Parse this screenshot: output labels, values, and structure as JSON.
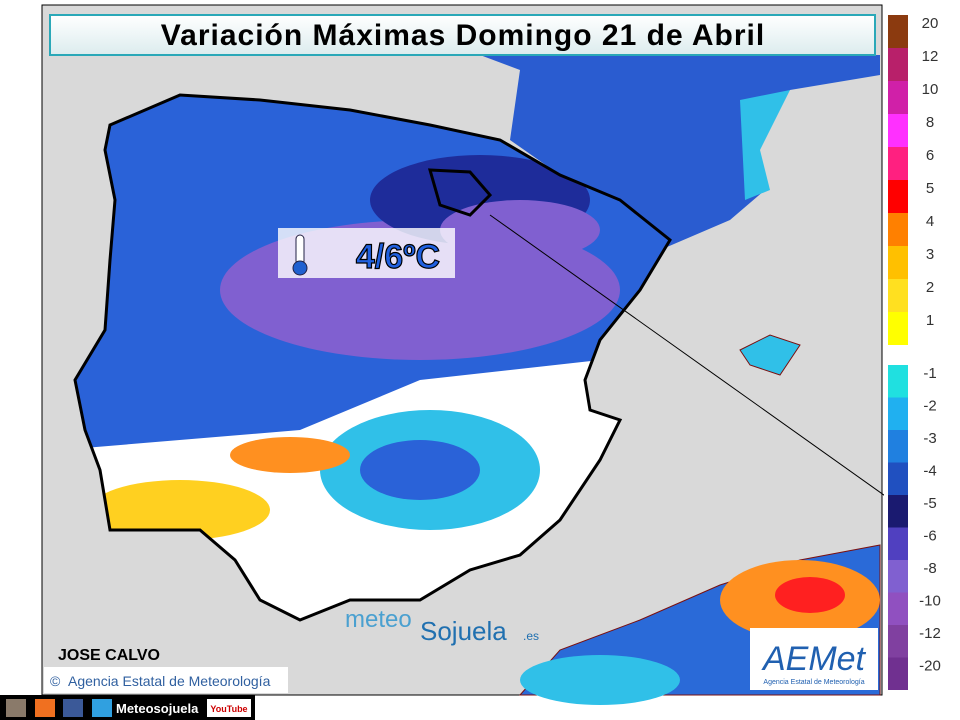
{
  "title": "Variación Máximas Domingo 21 de Abril",
  "annotation": "4/6ºC",
  "author": "JOSE CALVO",
  "credit": "Agencia Estatal de Meteorología",
  "watermark": {
    "part1": "meteo",
    "part2": "Sojuela",
    "part3": ".es"
  },
  "aemet": {
    "logo": "AEMet",
    "subtitle": "Agencia Estatal de Meteorología"
  },
  "footer": {
    "site": "Meteosojuela",
    "youtube": "YouTube"
  },
  "legend": {
    "warm": [
      {
        "label": "20",
        "color": "#8b3a0f"
      },
      {
        "label": "12",
        "color": "#b8206a"
      },
      {
        "label": "10",
        "color": "#d020a8"
      },
      {
        "label": "8",
        "color": "#ff30ff"
      },
      {
        "label": "6",
        "color": "#ff2080"
      },
      {
        "label": "5",
        "color": "#ff0000"
      },
      {
        "label": "4",
        "color": "#ff8000"
      },
      {
        "label": "3",
        "color": "#ffc000"
      },
      {
        "label": "2",
        "color": "#ffe020"
      },
      {
        "label": "1",
        "color": "#ffff00"
      }
    ],
    "cold": [
      {
        "label": "-1",
        "color": "#20e0e0"
      },
      {
        "label": "-2",
        "color": "#20b0f0"
      },
      {
        "label": "-3",
        "color": "#2080e0"
      },
      {
        "label": "-4",
        "color": "#2050c0"
      },
      {
        "label": "-5",
        "color": "#1a1a70"
      },
      {
        "label": "-6",
        "color": "#5040c0"
      },
      {
        "label": "-8",
        "color": "#8060d0"
      },
      {
        "label": "-10",
        "color": "#9050c0"
      },
      {
        "label": "-12",
        "color": "#8040a0"
      },
      {
        "label": "-20",
        "color": "#703090"
      }
    ]
  }
}
